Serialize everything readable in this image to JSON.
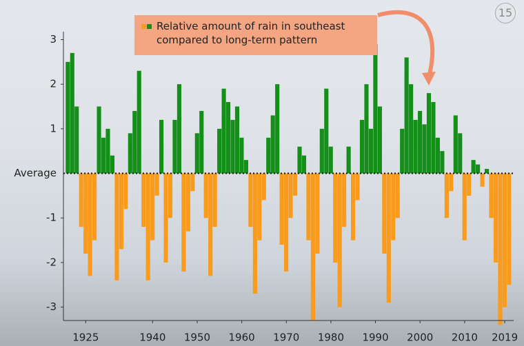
{
  "page_number": "15",
  "chart_data": {
    "type": "bar",
    "x": [
      1921,
      1922,
      1923,
      1924,
      1925,
      1926,
      1927,
      1928,
      1929,
      1930,
      1931,
      1932,
      1933,
      1934,
      1935,
      1936,
      1937,
      1938,
      1939,
      1940,
      1941,
      1942,
      1943,
      1944,
      1945,
      1946,
      1947,
      1948,
      1949,
      1950,
      1951,
      1952,
      1953,
      1954,
      1955,
      1956,
      1957,
      1958,
      1959,
      1960,
      1961,
      1962,
      1963,
      1964,
      1965,
      1966,
      1967,
      1968,
      1969,
      1970,
      1971,
      1972,
      1973,
      1974,
      1975,
      1976,
      1977,
      1978,
      1979,
      1980,
      1981,
      1982,
      1983,
      1984,
      1985,
      1986,
      1987,
      1988,
      1989,
      1990,
      1991,
      1992,
      1993,
      1994,
      1995,
      1996,
      1997,
      1998,
      1999,
      2000,
      2001,
      2002,
      2003,
      2004,
      2005,
      2006,
      2007,
      2008,
      2009,
      2010,
      2011,
      2012,
      2013,
      2014,
      2015,
      2016,
      2017,
      2018,
      2019,
      2020
    ],
    "series": [
      {
        "name": "Relative amount of rain in southeast compared to long-term pattern",
        "colors": {
          "positive": "#14901a",
          "negative": "#f99b1c"
        },
        "values": [
          2.5,
          2.7,
          1.5,
          -1.2,
          -1.8,
          -2.3,
          -1.5,
          1.5,
          0.8,
          1.0,
          0.4,
          -2.4,
          -1.7,
          -0.8,
          0.9,
          1.4,
          2.3,
          -1.2,
          -2.4,
          -1.5,
          -0.5,
          1.2,
          -2.0,
          -1.0,
          1.2,
          2.0,
          -2.2,
          -1.3,
          -0.4,
          0.9,
          1.4,
          -1.0,
          -2.3,
          -1.2,
          1.0,
          1.9,
          1.6,
          1.2,
          1.5,
          0.8,
          0.3,
          -1.2,
          -2.7,
          -1.5,
          -0.6,
          0.8,
          1.3,
          2.0,
          -1.6,
          -2.2,
          -1.0,
          -0.5,
          0.6,
          0.4,
          -1.5,
          -3.3,
          -1.8,
          1.0,
          1.9,
          0.6,
          -2.0,
          -3.0,
          -1.2,
          0.6,
          -1.5,
          -0.6,
          1.2,
          2.0,
          1.0,
          2.9,
          1.5,
          -1.8,
          -2.9,
          -1.5,
          -1.0,
          1.0,
          2.6,
          2.0,
          1.2,
          1.4,
          1.1,
          1.8,
          1.6,
          0.8,
          0.5,
          -1.0,
          -0.4,
          1.3,
          0.9,
          -1.5,
          -0.5,
          0.3,
          0.2,
          -0.3,
          0.1,
          -1.0,
          -2.0,
          -3.4,
          -3.0,
          -2.5
        ]
      }
    ],
    "xlim": [
      1920,
      2021
    ],
    "xticks": [
      1925,
      1940,
      1950,
      1960,
      1970,
      1980,
      1990,
      2000,
      2010,
      2019
    ],
    "ylim": [
      -3.3,
      3.1
    ],
    "yticks": [
      3,
      2,
      1,
      {
        "value": 0,
        "label": "Average"
      },
      -1,
      -2,
      -3
    ]
  }
}
